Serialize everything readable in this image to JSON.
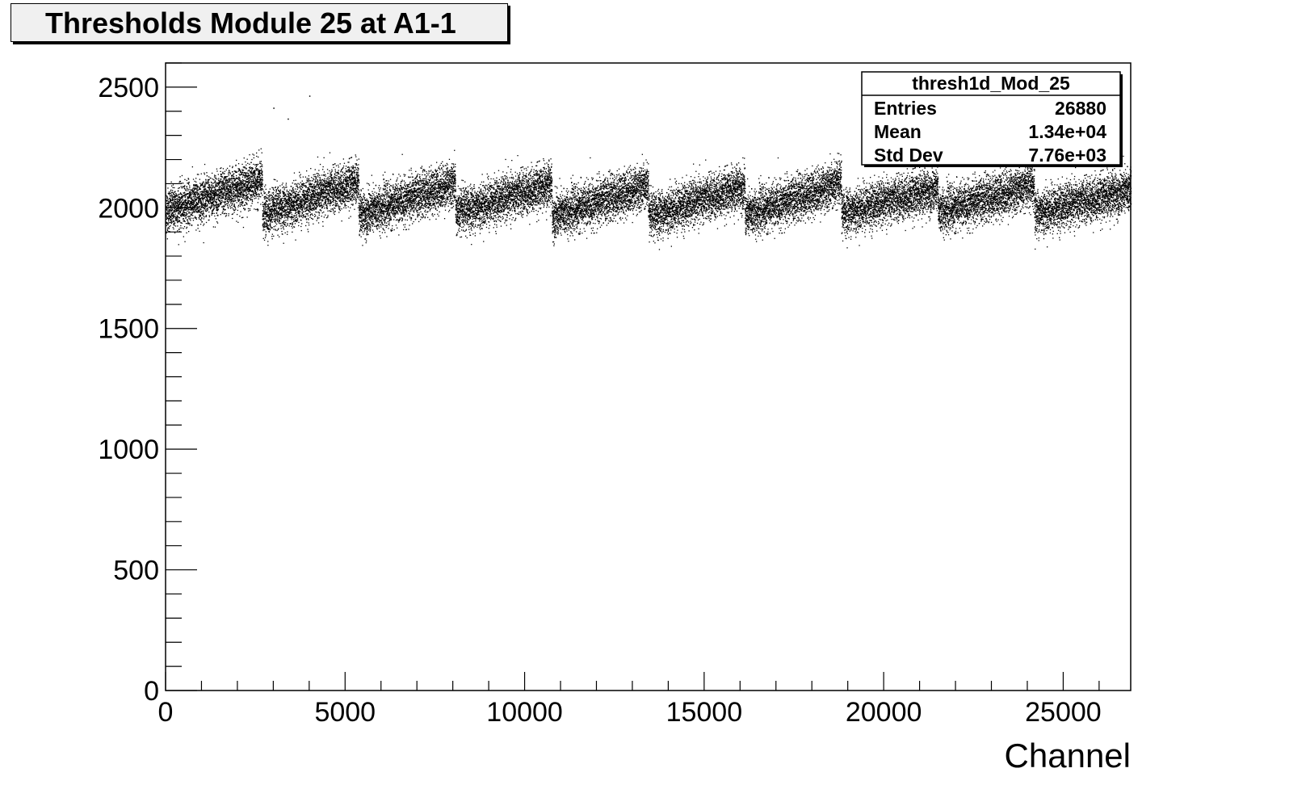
{
  "chart_data": {
    "type": "scatter",
    "title": "Thresholds Module 25 at A1-1",
    "xlabel": "Channel",
    "ylabel": "",
    "xlim": [
      0,
      26880
    ],
    "ylim": [
      0,
      2600
    ],
    "x_ticks": [
      "0",
      "5000",
      "10000",
      "15000",
      "20000",
      "25000"
    ],
    "y_ticks": [
      "0",
      "500",
      "1000",
      "1500",
      "2000",
      "2500"
    ],
    "series": [
      {
        "channels_per_block": 2688,
        "blocks": 10,
        "block_start_mean": [
          1990,
          1975,
          1970,
          1980,
          1965,
          1965,
          1970,
          1980,
          1985,
          1980
        ],
        "block_end_mean": [
          2115,
          2110,
          2105,
          2100,
          2095,
          2090,
          2105,
          2080,
          2095,
          2075
        ],
        "spread_sd": 45,
        "outliers": [
          [
            3000,
            2415
          ],
          [
            3400,
            2370
          ],
          [
            4000,
            2465
          ]
        ],
        "marker_color": "#000000"
      }
    ],
    "stats_box": {
      "name": "thresh1d_Mod_25",
      "rows": [
        {
          "label": "Entries",
          "value": "26880"
        },
        {
          "label": "Mean",
          "value": "1.34e+04"
        },
        {
          "label": "Std Dev",
          "value": "7.76e+03"
        }
      ]
    },
    "legend": "top-right",
    "grid": false
  }
}
